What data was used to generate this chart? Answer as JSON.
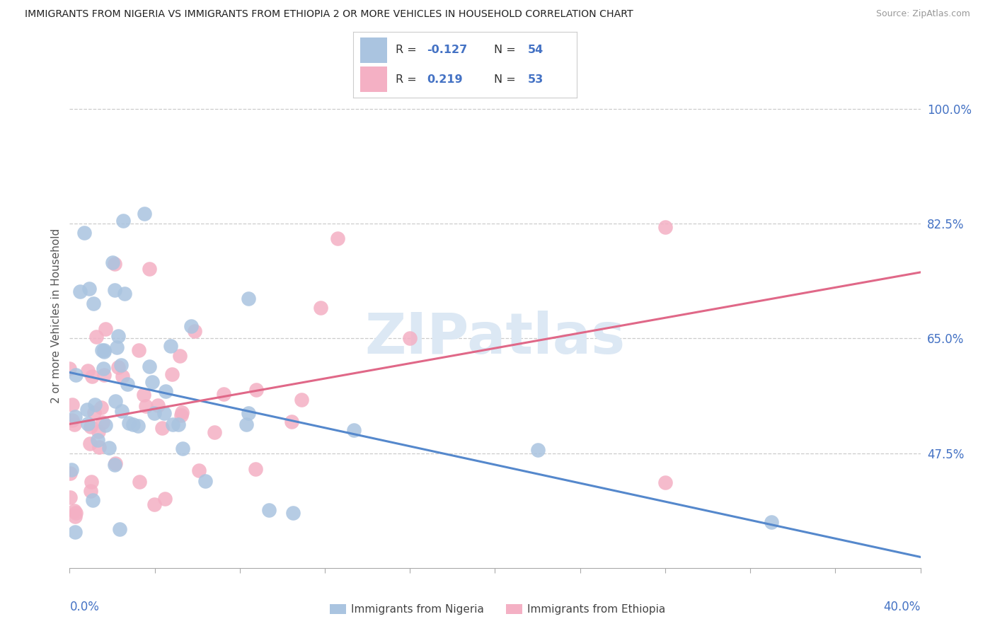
{
  "title": "IMMIGRANTS FROM NIGERIA VS IMMIGRANTS FROM ETHIOPIA 2 OR MORE VEHICLES IN HOUSEHOLD CORRELATION CHART",
  "source": "Source: ZipAtlas.com",
  "ylabel_title": "2 or more Vehicles in Household",
  "legend_nigeria": "Immigrants from Nigeria",
  "legend_ethiopia": "Immigrants from Ethiopia",
  "r_nigeria": -0.127,
  "n_nigeria": 54,
  "r_ethiopia": 0.219,
  "n_ethiopia": 53,
  "color_nigeria": "#aac4e0",
  "color_ethiopia": "#f4b0c4",
  "color_nigeria_line": "#5588cc",
  "color_ethiopia_line": "#e06888",
  "color_text_blue": "#4472c4",
  "color_axis": "#aaaaaa",
  "color_grid": "#cccccc",
  "watermark_color": "#dce8f4",
  "yticks": [
    47.5,
    65.0,
    82.5,
    100.0
  ],
  "ytick_labels": [
    "47.5%",
    "65.0%",
    "82.5%",
    "100.0%"
  ],
  "xmin": 0.0,
  "xmax": 40.0,
  "ymin": 30.0,
  "ymax": 107.0
}
